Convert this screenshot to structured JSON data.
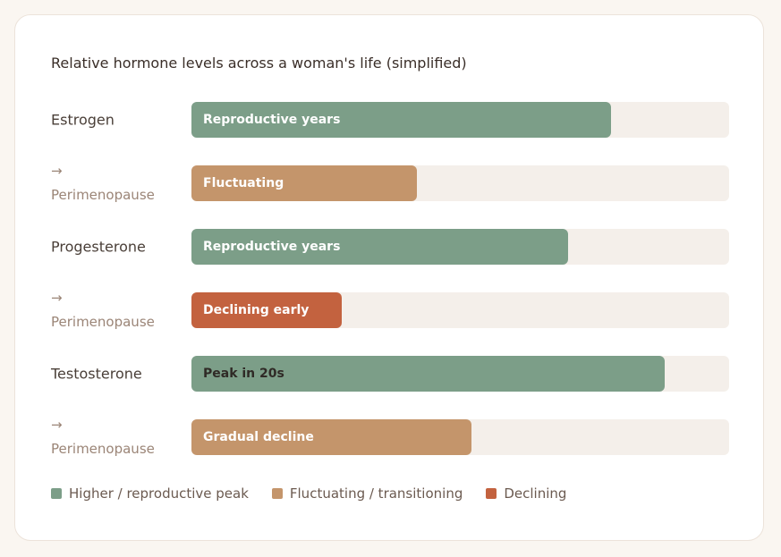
{
  "chart_data": {
    "type": "bar",
    "orientation": "horizontal",
    "title": "Relative hormone levels across a woman's life (simplified)",
    "categories": [
      "Estrogen",
      "→ Perimenopause",
      "Progesterone",
      "→ Perimenopause",
      "Testosterone",
      "→ Perimenopause"
    ],
    "values": [
      78,
      42,
      70,
      28,
      88,
      52
    ],
    "bar_labels": [
      "Reproductive years",
      "Fluctuating",
      "Reproductive years",
      "Declining early",
      "Peak in 20s",
      "Gradual decline"
    ],
    "colors": [
      "#7c9e88",
      "#c4956b",
      "#7c9e88",
      "#c3623f",
      "#7c9e88",
      "#c4956b"
    ],
    "label_colors": [
      "#ffffff",
      "#ffffff",
      "#ffffff",
      "#ffffff",
      "#2f2a26",
      "#ffffff"
    ],
    "xlim": [
      0,
      100
    ],
    "legend": [
      {
        "name": "Higher / reproductive peak",
        "color": "#7c9e88"
      },
      {
        "name": "Fluctuating / transitioning",
        "color": "#c4956b"
      },
      {
        "name": "Declining",
        "color": "#c3623f"
      }
    ]
  }
}
